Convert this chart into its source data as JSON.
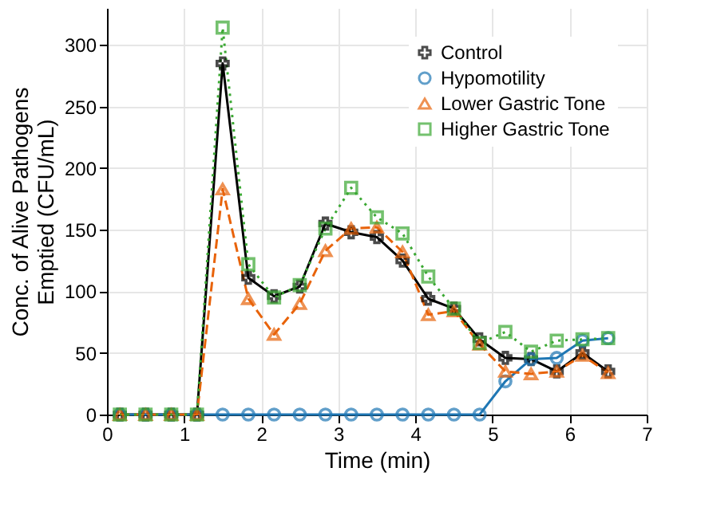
{
  "chart_data": {
    "type": "line",
    "xlabel": "Time (min)",
    "ylabel": "Conc. of Alive Pathogens\nEmptied (CFU/mL)",
    "x": [
      0.167,
      0.5,
      0.833,
      1.167,
      1.5,
      1.833,
      2.167,
      2.5,
      2.833,
      3.167,
      3.5,
      3.833,
      4.167,
      4.5,
      4.833,
      5.167,
      5.5,
      5.833,
      6.167,
      6.5
    ],
    "series": [
      {
        "name": "Control",
        "color": "#000000",
        "marker": "cross",
        "line_style": "solid",
        "values": [
          0,
          0,
          0,
          0,
          285,
          111,
          96,
          104,
          155,
          148,
          144,
          125,
          94,
          86,
          61,
          46,
          45,
          35,
          50,
          35
        ]
      },
      {
        "name": "Hypomotility",
        "color": "#1f77b4",
        "marker": "circle",
        "line_style": "solid",
        "values": [
          0,
          0,
          0,
          0,
          0,
          0,
          0,
          0,
          0,
          0,
          0,
          0,
          0,
          0,
          0,
          27,
          45,
          46,
          60,
          62
        ]
      },
      {
        "name": "Lower Gastric Tone",
        "color": "#e8630a",
        "marker": "triangle",
        "line_style": "dashed",
        "values": [
          0,
          0,
          0,
          0,
          183,
          94,
          65,
          90,
          133,
          151,
          152,
          132,
          81,
          84,
          57,
          35,
          33,
          35,
          48,
          34
        ]
      },
      {
        "name": "Higher Gastric Tone",
        "color": "#3aa832",
        "marker": "square",
        "line_style": "dotted",
        "values": [
          0,
          0,
          0,
          0,
          314,
          122,
          95,
          105,
          151,
          184,
          160,
          147,
          112,
          86,
          58,
          67,
          51,
          60,
          61,
          62
        ]
      }
    ],
    "xlim": [
      0,
      7
    ],
    "xticks": [
      0,
      1,
      2,
      3,
      4,
      5,
      6,
      7
    ],
    "ylim": [
      0,
      330
    ],
    "yticks": [
      0,
      50,
      100,
      150,
      200,
      250,
      300
    ],
    "grid": true,
    "legend": "top right"
  }
}
